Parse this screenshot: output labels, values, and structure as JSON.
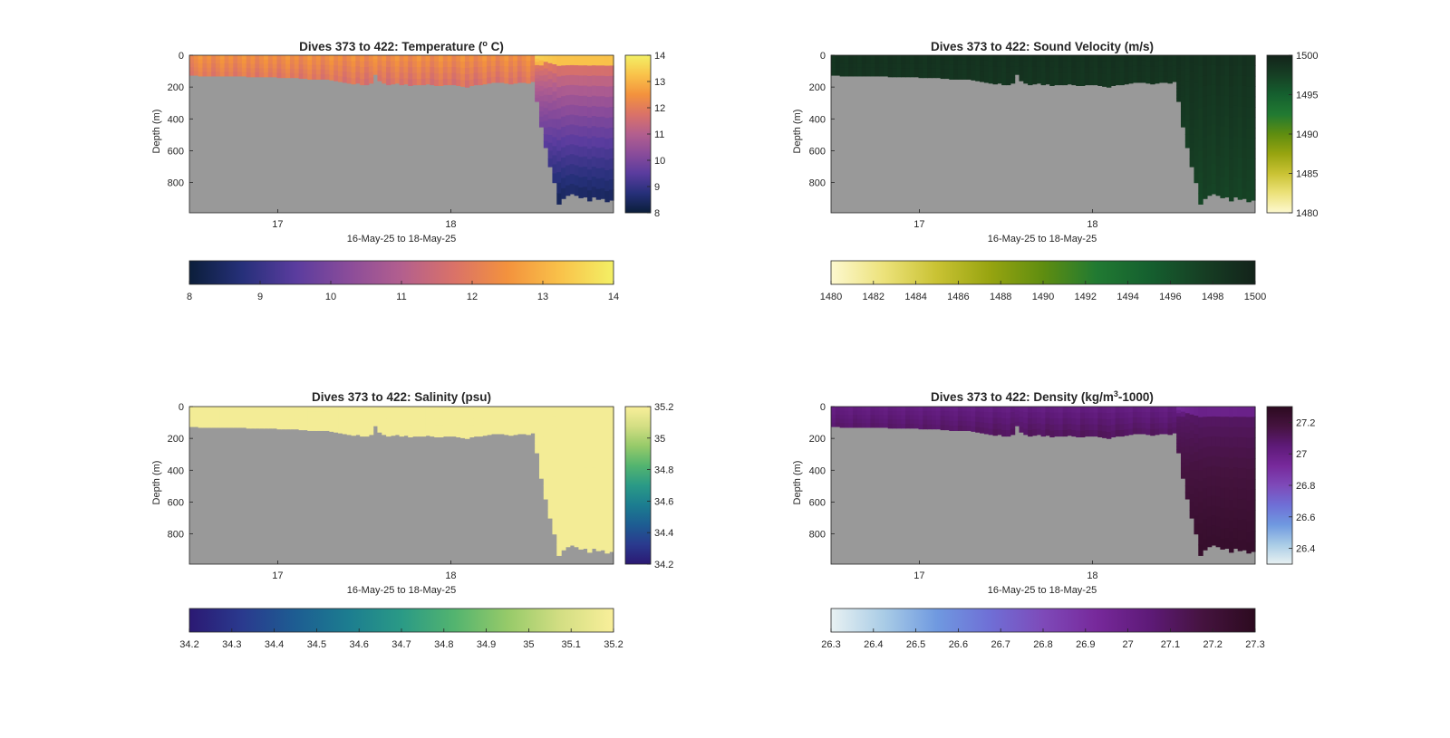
{
  "colors": {
    "background": "#ffffff",
    "land": "#999999",
    "axis": "#262626"
  },
  "chart_data": [
    {
      "type": "heatmap",
      "variable": "temperature",
      "title_main": "Dives 373 to 422: Temperature (",
      "title_sup": "o",
      "title_end": " C)",
      "ylabel": "Depth (m)",
      "xlabel": "16-May-25 to 18-May-25",
      "x_ticks": [
        "17",
        "18"
      ],
      "x_tick_values": [
        17,
        18
      ],
      "xlim": [
        16.49,
        18.94
      ],
      "y_ticks": [
        "0",
        "200",
        "400",
        "600",
        "800"
      ],
      "y_tick_values": [
        0,
        200,
        400,
        600,
        800
      ],
      "ylim": [
        0,
        990
      ],
      "clim": [
        8,
        14
      ],
      "colorbar_ticks": [
        "8",
        "9",
        "10",
        "11",
        "12",
        "13",
        "14"
      ],
      "colorbar_tick_values": [
        8,
        9,
        10,
        11,
        12,
        13,
        14
      ],
      "h_colorbar_ticks": [
        "8",
        "9",
        "10",
        "11",
        "12",
        "13",
        "14"
      ],
      "h_colorbar_tick_values": [
        8,
        9,
        10,
        11,
        12,
        13,
        14
      ],
      "colormap": [
        "#0b1e3a",
        "#26307a",
        "#5a3c9e",
        "#8a4c9a",
        "#b35f8e",
        "#da7268",
        "#f3923d",
        "#f9c24a",
        "#f3f065"
      ],
      "surface_value": 13.0,
      "deep_value": 9.2
    },
    {
      "type": "heatmap",
      "variable": "sound_velocity",
      "title_main": "Dives 373 to 422: Sound Velocity (m/s)",
      "title_sup": "",
      "title_end": "",
      "ylabel": "Depth (m)",
      "xlabel": "16-May-25 to 18-May-25",
      "x_ticks": [
        "17",
        "18"
      ],
      "x_tick_values": [
        17,
        18
      ],
      "xlim": [
        16.49,
        18.94
      ],
      "y_ticks": [
        "0",
        "200",
        "400",
        "600",
        "800"
      ],
      "y_tick_values": [
        0,
        200,
        400,
        600,
        800
      ],
      "ylim": [
        0,
        990
      ],
      "clim": [
        1480,
        1500
      ],
      "colorbar_ticks": [
        "1480",
        "1485",
        "1490",
        "1495",
        "1500"
      ],
      "colorbar_tick_values": [
        1480,
        1485,
        1490,
        1495,
        1500
      ],
      "h_colorbar_ticks": [
        "1480",
        "1482",
        "1484",
        "1486",
        "1488",
        "1490",
        "1492",
        "1494",
        "1496",
        "1498",
        "1500"
      ],
      "h_colorbar_tick_values": [
        1480,
        1482,
        1484,
        1486,
        1488,
        1490,
        1492,
        1494,
        1496,
        1498,
        1500
      ],
      "colormap": [
        "#fdf8cf",
        "#ece27a",
        "#c9c233",
        "#97a410",
        "#5f8d10",
        "#217a32",
        "#15602f",
        "#163f24",
        "#13231a"
      ],
      "surface_value": 1498.0,
      "deep_value": 1496.5
    },
    {
      "type": "heatmap",
      "variable": "salinity",
      "title_main": "Dives 373 to 422: Salinity (psu)",
      "title_sup": "",
      "title_end": "",
      "ylabel": "Depth (m)",
      "xlabel": "16-May-25 to 18-May-25",
      "x_ticks": [
        "17",
        "18"
      ],
      "x_tick_values": [
        17,
        18
      ],
      "xlim": [
        16.49,
        18.94
      ],
      "y_ticks": [
        "0",
        "200",
        "400",
        "600",
        "800"
      ],
      "y_tick_values": [
        0,
        200,
        400,
        600,
        800
      ],
      "ylim": [
        0,
        990
      ],
      "clim": [
        34.2,
        35.2
      ],
      "colorbar_ticks": [
        "34.2",
        "34.4",
        "34.6",
        "34.8",
        "35",
        "35.2"
      ],
      "colorbar_tick_values": [
        34.2,
        34.4,
        34.6,
        34.8,
        35.0,
        35.2
      ],
      "h_colorbar_ticks": [
        "34.2",
        "34.3",
        "34.4",
        "34.5",
        "34.6",
        "34.7",
        "34.8",
        "34.9",
        "35",
        "35.1",
        "35.2"
      ],
      "h_colorbar_tick_values": [
        34.2,
        34.3,
        34.4,
        34.5,
        34.6,
        34.7,
        34.8,
        34.9,
        35.0,
        35.1,
        35.2
      ],
      "colormap": [
        "#2b1973",
        "#2a3a8e",
        "#1d5d92",
        "#1c7d90",
        "#2a9a86",
        "#53b46f",
        "#96ca69",
        "#d3de83",
        "#f9ef9a"
      ],
      "surface_value": 35.2,
      "deep_value": 35.2
    },
    {
      "type": "heatmap",
      "variable": "density",
      "title_main": "Dives 373 to 422: Density (kg/m",
      "title_sup": "3",
      "title_end": "-1000)",
      "ylabel": "Depth (m)",
      "xlabel": "16-May-25 to 18-May-25",
      "x_ticks": [
        "17",
        "18"
      ],
      "x_tick_values": [
        17,
        18
      ],
      "xlim": [
        16.49,
        18.94
      ],
      "y_ticks": [
        "0",
        "200",
        "400",
        "600",
        "800"
      ],
      "y_tick_values": [
        0,
        200,
        400,
        600,
        800
      ],
      "ylim": [
        0,
        990
      ],
      "clim": [
        26.3,
        27.3
      ],
      "colorbar_ticks": [
        "26.4",
        "26.6",
        "26.8",
        "27",
        "27.2"
      ],
      "colorbar_tick_values": [
        26.4,
        26.6,
        26.8,
        27.0,
        27.2
      ],
      "h_colorbar_ticks": [
        "26.3",
        "26.4",
        "26.5",
        "26.6",
        "26.7",
        "26.8",
        "26.9",
        "27",
        "27.1",
        "27.2",
        "27.3"
      ],
      "h_colorbar_tick_values": [
        26.3,
        26.4,
        26.5,
        26.6,
        26.7,
        26.8,
        26.9,
        27.0,
        27.1,
        27.2,
        27.3
      ],
      "colormap": [
        "#e8f1f2",
        "#a9cce6",
        "#6f99e0",
        "#6f6fd6",
        "#7e4ab9",
        "#77299b",
        "#5e1a78",
        "#45133f",
        "#2c0a1f"
      ],
      "surface_value": 26.9,
      "deep_value": 27.15
    }
  ],
  "profile_data": {
    "dive_days": [
      16.51,
      16.53,
      16.56,
      16.58,
      16.61,
      16.63,
      16.66,
      16.68,
      16.71,
      16.73,
      16.76,
      16.78,
      16.81,
      16.83,
      16.86,
      16.88,
      16.91,
      16.93,
      16.96,
      16.98,
      17.01,
      17.03,
      17.06,
      17.08,
      17.11,
      17.13,
      17.16,
      17.18,
      17.21,
      17.23,
      17.26,
      17.28,
      17.31,
      17.33,
      17.36,
      17.38,
      17.41,
      17.43,
      17.46,
      17.48,
      17.51,
      17.53,
      17.56,
      17.58,
      17.61,
      17.63,
      17.66,
      17.68,
      17.71,
      17.73,
      17.76,
      17.78,
      17.81,
      17.83,
      17.86,
      17.88,
      17.91,
      17.93,
      17.96,
      17.98,
      18.01,
      18.03,
      18.06,
      18.08,
      18.11,
      18.13,
      18.16,
      18.18,
      18.21,
      18.23,
      18.26,
      18.28,
      18.31,
      18.33,
      18.36,
      18.38,
      18.41,
      18.43,
      18.46,
      18.48,
      18.51,
      18.53,
      18.56,
      18.58,
      18.61,
      18.63,
      18.66,
      18.68,
      18.71,
      18.73,
      18.76,
      18.78,
      18.81,
      18.83,
      18.86,
      18.88,
      18.91
    ],
    "max_depth_m": [
      125,
      125,
      130,
      130,
      130,
      130,
      130,
      130,
      130,
      130,
      130,
      130,
      130,
      135,
      135,
      135,
      135,
      135,
      135,
      135,
      140,
      140,
      140,
      140,
      140,
      145,
      145,
      150,
      150,
      150,
      150,
      150,
      155,
      160,
      165,
      170,
      175,
      180,
      175,
      185,
      185,
      175,
      120,
      160,
      175,
      185,
      180,
      175,
      185,
      180,
      190,
      185,
      185,
      185,
      180,
      185,
      190,
      190,
      185,
      185,
      185,
      190,
      195,
      200,
      190,
      185,
      185,
      180,
      175,
      170,
      170,
      170,
      175,
      180,
      175,
      170,
      170,
      175,
      165,
      290,
      450,
      580,
      700,
      800,
      935,
      900,
      880,
      870,
      880,
      895,
      890,
      915,
      890,
      905,
      900,
      920,
      910
    ],
    "mixed_layer_m": 55
  }
}
